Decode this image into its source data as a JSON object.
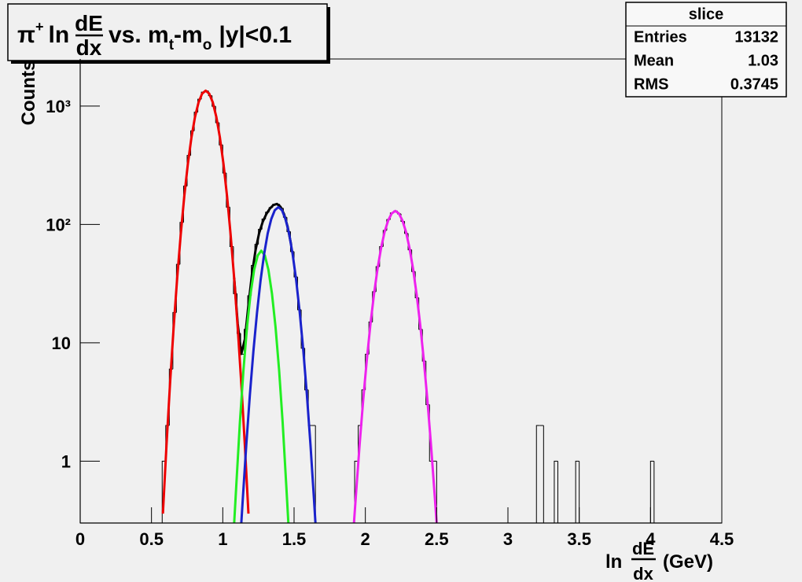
{
  "chart_data": {
    "type": "histogram",
    "title": {
      "pi": "π",
      "sup": "+",
      "ln": "ln",
      "num": "dE",
      "den": "dx",
      "mid": "vs. m",
      "sub1": "t",
      "dash": "-m",
      "sub2": "o",
      "tail": "|y|<0.1"
    },
    "y_label": "Counts",
    "x_label": {
      "ln": "ln",
      "num": "dE",
      "den": "dx",
      "unit": "(GeV)"
    },
    "stats": {
      "name": "slice",
      "rows": [
        [
          "Entries",
          13132
        ],
        [
          "Mean",
          1.03
        ],
        [
          "RMS",
          0.3745
        ]
      ]
    },
    "xlim": [
      0,
      4.5
    ],
    "xticks": [
      0,
      0.5,
      1,
      1.5,
      2,
      2.5,
      3,
      3.5,
      4,
      4.5
    ],
    "ylim": [
      0.3,
      2500
    ],
    "ylog": true,
    "yticks": [
      1,
      10,
      {
        "value": 100,
        "label": "10²"
      },
      {
        "value": 1000,
        "label": "10³"
      }
    ],
    "histogram": {
      "color": "#000000",
      "bins": [
        0,
        0.55,
        0.575,
        0.6,
        0.625,
        0.65,
        0.675,
        0.7,
        0.725,
        0.75,
        0.775,
        0.8,
        0.825,
        0.85,
        0.875,
        0.9,
        0.925,
        0.95,
        0.975,
        1,
        1.025,
        1.05,
        1.075,
        1.1,
        1.125,
        1.15,
        1.175,
        1.2,
        1.225,
        1.25,
        1.275,
        1.3,
        1.325,
        1.35,
        1.375,
        1.4,
        1.425,
        1.45,
        1.475,
        1.5,
        1.525,
        1.55,
        1.575,
        1.6,
        1.625,
        1.65,
        1.675,
        1.7,
        1.925,
        1.95,
        1.975,
        2,
        2.025,
        2.05,
        2.075,
        2.1,
        2.125,
        2.15,
        2.175,
        2.2,
        2.225,
        2.25,
        2.275,
        2.3,
        2.325,
        2.35,
        2.375,
        2.4,
        2.425,
        2.45,
        2.475,
        2.5,
        2.525,
        2.55,
        3.2,
        3.225,
        3.25,
        3.325,
        3.35,
        3.475,
        3.5,
        4,
        4.025,
        4.5
      ],
      "counts": [
        0,
        0,
        1,
        2,
        6,
        18,
        46,
        104,
        211,
        383,
        618,
        889,
        1144,
        1313,
        1343,
        1225,
        997,
        724,
        470,
        272,
        140,
        65,
        26,
        12,
        8,
        13,
        25,
        45,
        68,
        91,
        111,
        127,
        139,
        148,
        148,
        137,
        115,
        87,
        59,
        36,
        19,
        9,
        4,
        2,
        2,
        0,
        0,
        0,
        1,
        2,
        4,
        8,
        15,
        27,
        44,
        65,
        89,
        110,
        125,
        130,
        123,
        106,
        84,
        61,
        40,
        24,
        13,
        7,
        3,
        1,
        1,
        0,
        0,
        0,
        2,
        2,
        0,
        1,
        0,
        1,
        0,
        1,
        0
      ]
    },
    "fits": [
      {
        "color": "#000000",
        "x": [
          1.08,
          1.105,
          1.13,
          1.155,
          1.18,
          1.205,
          1.23,
          1.255,
          1.28,
          1.305,
          1.33,
          1.355,
          1.38,
          1.405,
          1.43,
          1.455,
          1.48
        ],
        "values": [
          35.3,
          14.4,
          8.05,
          10.7,
          20.9,
          38.2,
          60.8,
          84.5,
          105,
          122,
          136,
          146,
          149,
          141,
          122,
          95.6,
          66.9
        ]
      },
      {
        "color": "#ee0000",
        "x": [
          0.58,
          0.605,
          0.63,
          0.655,
          0.68,
          0.705,
          0.73,
          0.755,
          0.78,
          0.805,
          0.83,
          0.855,
          0.88,
          0.905,
          0.93,
          0.955,
          0.98,
          1.005,
          1.03,
          1.055,
          1.08,
          1.105,
          1.13,
          1.155,
          1.18
        ],
        "values": [
          0.36,
          1.35,
          4.5,
          13.3,
          35,
          82,
          173,
          324,
          541,
          807,
          1074,
          1274,
          1350,
          1274,
          1074,
          807,
          541,
          324,
          173,
          82,
          35,
          13.3,
          4.5,
          1.35,
          0.36
        ]
      },
      {
        "color": "#22ee22",
        "x": [
          1.08,
          1.095,
          1.12,
          1.145,
          1.17,
          1.195,
          1.22,
          1.245,
          1.27,
          1.295,
          1.32,
          1.345,
          1.37,
          1.395,
          1.42,
          1.445,
          1.46
        ],
        "values": [
          0.28,
          0.63,
          2.12,
          5.88,
          13.6,
          26.0,
          41.4,
          54.7,
          60,
          54.7,
          41.4,
          26.0,
          13.6,
          5.88,
          2.12,
          0.63,
          0.28
        ]
      },
      {
        "color": "#1a22cc",
        "x": [
          1.13,
          1.14,
          1.165,
          1.19,
          1.215,
          1.24,
          1.265,
          1.29,
          1.315,
          1.34,
          1.365,
          1.39,
          1.415,
          1.44,
          1.465,
          1.49,
          1.515,
          1.54,
          1.565,
          1.59,
          1.615,
          1.64,
          1.65
        ],
        "values": [
          0.29,
          0.47,
          1.38,
          3.63,
          8.55,
          17.9,
          33.6,
          56.1,
          83.8,
          111,
          132,
          140,
          132,
          111,
          83.8,
          56.1,
          33.6,
          17.9,
          8.55,
          3.63,
          1.38,
          0.47,
          0.29
        ]
      },
      {
        "color": "#ee22ee",
        "x": [
          1.92,
          1.935,
          1.96,
          1.985,
          2.01,
          2.035,
          2.06,
          2.085,
          2.11,
          2.135,
          2.16,
          2.185,
          2.21,
          2.235,
          2.26,
          2.285,
          2.31,
          2.335,
          2.36,
          2.385,
          2.41,
          2.435,
          2.46,
          2.485,
          2.5
        ],
        "values": [
          0.29,
          0.54,
          1.39,
          3.3,
          7.13,
          14.1,
          25.4,
          41.9,
          62.9,
          86.5,
          108,
          124,
          130,
          124,
          108,
          86.5,
          62.9,
          41.9,
          25.4,
          14.1,
          7.13,
          3.3,
          1.39,
          0.54,
          0.29
        ]
      }
    ]
  }
}
